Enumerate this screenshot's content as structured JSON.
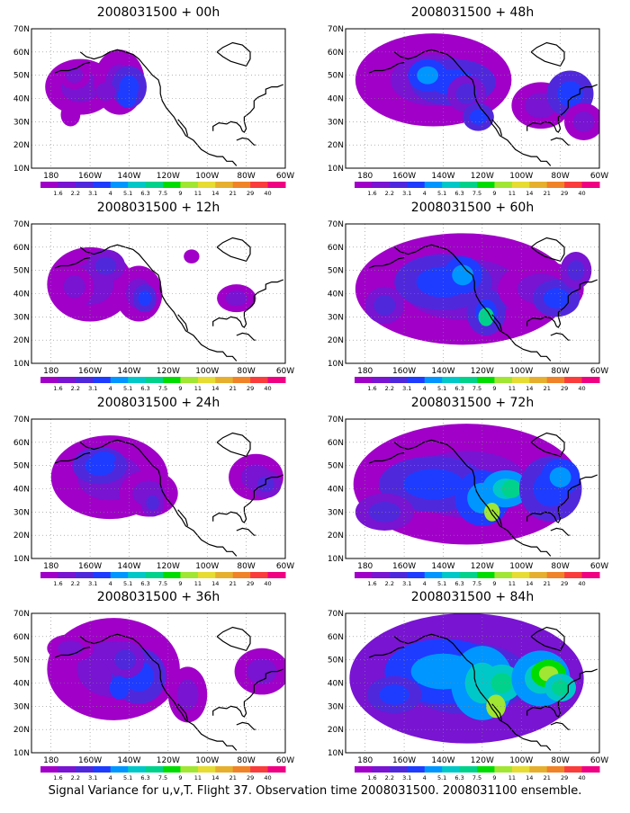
{
  "figure": {
    "caption": "Signal Variance for u,v,T. Flight 37. Observation time 2008031500. 2008031100 ensemble."
  },
  "axes": {
    "lat_labels": [
      "70N",
      "60N",
      "50N",
      "40N",
      "30N",
      "20N",
      "10N"
    ],
    "lon_labels": [
      "180",
      "160W",
      "140W",
      "120W",
      "100W",
      "80W",
      "60W"
    ],
    "lat_range": [
      10,
      70
    ],
    "lon_range": [
      170,
      60
    ]
  },
  "colorbar": {
    "labels": [
      "1.6",
      "2.2",
      "3.1",
      "4",
      "5.1",
      "6.3",
      "7.5",
      "9",
      "11",
      "14",
      "21",
      "29",
      "40"
    ],
    "colors": [
      "#a000c8",
      "#7814d2",
      "#5028dc",
      "#1e3cff",
      "#0096ff",
      "#00c8c8",
      "#00d28c",
      "#00dc00",
      "#a0e632",
      "#e6dc32",
      "#e6af2d",
      "#f08228",
      "#fa3c3c",
      "#f00082"
    ]
  },
  "panels": [
    {
      "id": "p00",
      "title": "2008031500 + 00h"
    },
    {
      "id": "p12",
      "title": "2008031500 + 12h"
    },
    {
      "id": "p24",
      "title": "2008031500 + 24h"
    },
    {
      "id": "p36",
      "title": "2008031500 + 36h"
    },
    {
      "id": "p48",
      "title": "2008031500 + 48h"
    },
    {
      "id": "p60",
      "title": "2008031500 + 60h"
    },
    {
      "id": "p72",
      "title": "2008031500 + 72h"
    },
    {
      "id": "p84",
      "title": "2008031500 + 84h"
    }
  ]
}
